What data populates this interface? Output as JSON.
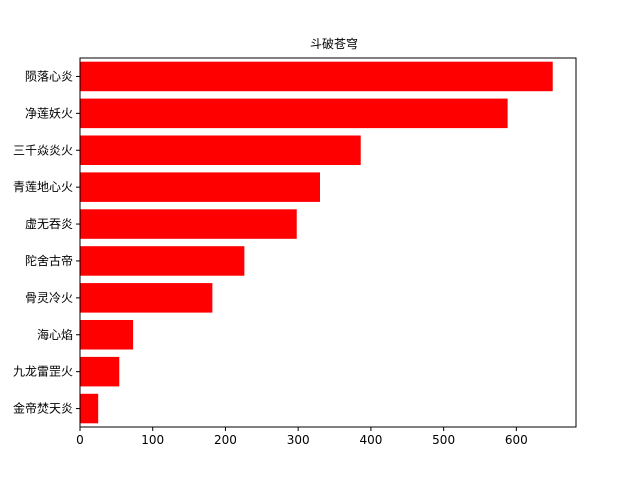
{
  "chart_data": {
    "type": "bar",
    "orientation": "horizontal",
    "title": "斗破苍穹",
    "xlabel": "",
    "ylabel": "",
    "categories": [
      "金帝焚天炎",
      "九龙雷罡火",
      "海心焰",
      "骨灵冷火",
      "陀舍古帝",
      "虚无吞炎",
      "青莲地心火",
      "三千焱炎火",
      "净莲妖火",
      "陨落心炎"
    ],
    "values": [
      25,
      54,
      73,
      182,
      226,
      298,
      330,
      386,
      588,
      650
    ],
    "xlim": [
      0,
      682
    ],
    "xticks": [
      0,
      100,
      200,
      300,
      400,
      500,
      600
    ],
    "bar_color": "#ff0000",
    "grid": false
  }
}
